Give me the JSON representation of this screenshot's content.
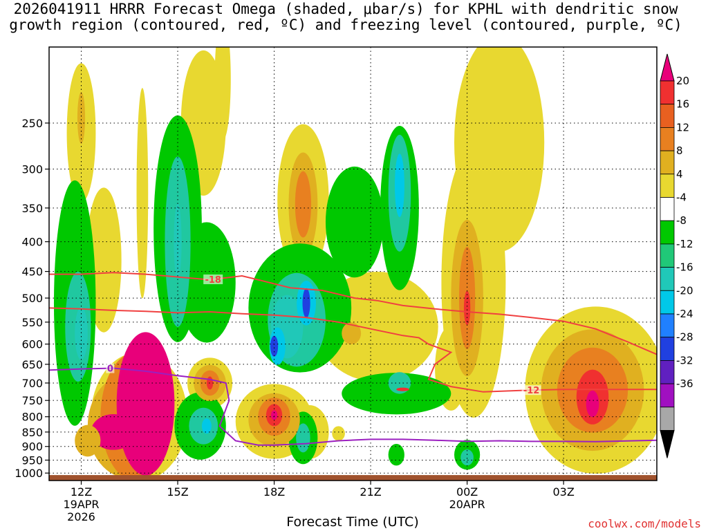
{
  "header": {
    "title_line1": "2026041911 HRRR Forecast Omega (shaded, μbar/s) for KPHL with dendritic snow",
    "title_line2": "growth region (contoured, red, ºC) and freezing level (contoured, purple, ºC)"
  },
  "footer": {
    "credit": "coolwx.com/models"
  },
  "colors": {
    "strong_rise": "#00c800",
    "rise": "#20c8a0",
    "cyan": "#00c8e8",
    "blue": "#2080ff",
    "darkblue": "#2040e0",
    "yellow": "#e8d830",
    "gold": "#e0b020",
    "orange": "#e88020",
    "red": "#f03030",
    "magenta": "#e8007a",
    "ground": "#a0522d",
    "dgz": "#f04040",
    "freezing": "#9b20c0"
  },
  "chart_data": {
    "type": "heatmap",
    "title": "2026041911 HRRR Forecast Omega (shaded, μbar/s) for KPHL with dendritic snow growth region (contoured, red, ºC) and freezing level (contoured, purple, ºC)",
    "xlabel": "Forecast Time (UTC)",
    "ylabel": "",
    "x_ticks": [
      {
        "hour": 12,
        "label": "12Z",
        "date": "19APR",
        "year": "2026"
      },
      {
        "hour": 15,
        "label": "15Z"
      },
      {
        "hour": 18,
        "label": "18Z"
      },
      {
        "hour": 21,
        "label": "21Z"
      },
      {
        "hour": 24,
        "label": "00Z",
        "date": "20APR"
      },
      {
        "hour": 27,
        "label": "03Z"
      }
    ],
    "xlim_hours": [
      11,
      29.9
    ],
    "y_ticks": [
      250,
      300,
      350,
      400,
      450,
      500,
      550,
      600,
      650,
      700,
      750,
      800,
      850,
      900,
      950,
      1000
    ],
    "ylim_hpa": [
      1030,
      185
    ],
    "grid": true,
    "colorbar": {
      "labels": [
        20,
        16,
        12,
        8,
        4,
        -4,
        -8,
        -12,
        -16,
        -20,
        -24,
        -28,
        -32,
        -36
      ],
      "colors": [
        "#e8007a",
        "#f03030",
        "#e86020",
        "#e88020",
        "#e0b020",
        "#e8d830",
        "#ffffff",
        "#00c800",
        "#20c878",
        "#20c8b8",
        "#00c8e8",
        "#2080ff",
        "#2040e0",
        "#6020c0",
        "#a010c0",
        "#a8a8a8",
        "#000000"
      ]
    },
    "omega_regions": [
      {
        "level": 4,
        "x": 12.0,
        "p": 260,
        "rx": 0.45,
        "rp": 70
      },
      {
        "level": 8,
        "x": 12.0,
        "p": 245,
        "rx": 0.12,
        "rp": 25
      },
      {
        "level": 4,
        "x": 12.7,
        "p": 430,
        "rx": 0.55,
        "rp": 120
      },
      {
        "level": 4,
        "x": 13.9,
        "p": 330,
        "rx": 0.18,
        "rp": 130
      },
      {
        "level": 4,
        "x": 15.8,
        "p": 250,
        "rx": 0.7,
        "rp": 70
      },
      {
        "level": 4,
        "x": 16.4,
        "p": 210,
        "rx": 0.25,
        "rp": 50
      },
      {
        "level": 4,
        "x": 18.9,
        "p": 340,
        "rx": 0.8,
        "rp": 100
      },
      {
        "level": 8,
        "x": 18.9,
        "p": 345,
        "rx": 0.45,
        "rp": 70
      },
      {
        "level": 12,
        "x": 18.9,
        "p": 345,
        "rx": 0.25,
        "rp": 45
      },
      {
        "level": 4,
        "x": 25.0,
        "p": 270,
        "rx": 1.4,
        "rp": 110
      },
      {
        "level": 4,
        "x": 21.2,
        "p": 560,
        "rx": 1.9,
        "rp": 120
      },
      {
        "level": 4,
        "x": 24.2,
        "p": 470,
        "rx": 1.0,
        "rp": 230
      },
      {
        "level": 4,
        "x": 28.0,
        "p": 720,
        "rx": 2.2,
        "rp": 230
      },
      {
        "level": 4,
        "x": 13.8,
        "p": 800,
        "rx": 1.5,
        "rp": 200
      },
      {
        "level": 4,
        "x": 16.0,
        "p": 700,
        "rx": 0.7,
        "rp": 70
      },
      {
        "level": 4,
        "x": 18.0,
        "p": 815,
        "rx": 1.2,
        "rp": 120
      },
      {
        "level": 4,
        "x": 19.1,
        "p": 850,
        "rx": 0.6,
        "rp": 90
      },
      {
        "level": 4,
        "x": 20.0,
        "p": 855,
        "rx": 0.2,
        "rp": 25
      },
      {
        "level": 4,
        "x": 23.5,
        "p": 660,
        "rx": 0.5,
        "rp": 110
      },
      {
        "level": -4,
        "x": 11.8,
        "p": 510,
        "rx": 0.65,
        "rp": 230
      },
      {
        "level": -8,
        "x": 11.9,
        "p": 560,
        "rx": 0.4,
        "rp": 120
      },
      {
        "level": -12,
        "x": 12.0,
        "p": 575,
        "rx": 0.2,
        "rp": 60
      },
      {
        "level": -4,
        "x": 15.0,
        "p": 380,
        "rx": 0.75,
        "rp": 160
      },
      {
        "level": -4,
        "x": 15.9,
        "p": 470,
        "rx": 0.9,
        "rp": 110
      },
      {
        "level": -8,
        "x": 15.0,
        "p": 400,
        "rx": 0.4,
        "rp": 130
      },
      {
        "level": -12,
        "x": 15.0,
        "p": 400,
        "rx": 0.12,
        "rp": 60
      },
      {
        "level": -4,
        "x": 18.8,
        "p": 520,
        "rx": 1.6,
        "rp": 130
      },
      {
        "level": -4,
        "x": 20.5,
        "p": 370,
        "rx": 0.9,
        "rp": 80
      },
      {
        "level": -8,
        "x": 18.7,
        "p": 545,
        "rx": 0.9,
        "rp": 100
      },
      {
        "level": -12,
        "x": 18.4,
        "p": 560,
        "rx": 0.5,
        "rp": 70
      },
      {
        "level": -16,
        "x": 18.1,
        "p": 605,
        "rx": 0.25,
        "rp": 45
      },
      {
        "level": -20,
        "x": 18.0,
        "p": 605,
        "rx": 0.12,
        "rp": 25
      },
      {
        "level": -16,
        "x": 19.0,
        "p": 510,
        "rx": 0.3,
        "rp": 45
      },
      {
        "level": -20,
        "x": 19.0,
        "p": 510,
        "rx": 0.12,
        "rp": 30
      },
      {
        "level": -4,
        "x": 21.9,
        "p": 350,
        "rx": 0.6,
        "rp": 110
      },
      {
        "level": -8,
        "x": 21.9,
        "p": 330,
        "rx": 0.35,
        "rp": 75
      },
      {
        "level": -16,
        "x": 21.9,
        "p": 320,
        "rx": 0.15,
        "rp": 40
      },
      {
        "level": -4,
        "x": 21.8,
        "p": 730,
        "rx": 1.7,
        "rp": 60
      },
      {
        "level": -8,
        "x": 21.9,
        "p": 700,
        "rx": 0.35,
        "rp": 30
      },
      {
        "level": -4,
        "x": 15.7,
        "p": 830,
        "rx": 0.8,
        "rp": 110
      },
      {
        "level": -8,
        "x": 15.8,
        "p": 830,
        "rx": 0.45,
        "rp": 60
      },
      {
        "level": -16,
        "x": 15.9,
        "p": 830,
        "rx": 0.15,
        "rp": 25
      },
      {
        "level": -4,
        "x": 18.9,
        "p": 870,
        "rx": 0.45,
        "rp": 90
      },
      {
        "level": -8,
        "x": 18.9,
        "p": 870,
        "rx": 0.22,
        "rp": 50
      },
      {
        "level": -4,
        "x": 12.9,
        "p": 945,
        "rx": 0.3,
        "rp": 40
      },
      {
        "level": -8,
        "x": 12.9,
        "p": 945,
        "rx": 0.15,
        "rp": 22
      },
      {
        "level": -4,
        "x": 24.0,
        "p": 930,
        "rx": 0.4,
        "rp": 55
      },
      {
        "level": -8,
        "x": 24.0,
        "p": 940,
        "rx": 0.2,
        "rp": 30
      },
      {
        "level": -4,
        "x": 21.8,
        "p": 930,
        "rx": 0.25,
        "rp": 40
      },
      {
        "level": 8,
        "x": 13.5,
        "p": 830,
        "rx": 1.3,
        "rp": 170
      },
      {
        "level": 12,
        "x": 13.7,
        "p": 800,
        "rx": 1.1,
        "rp": 200
      },
      {
        "level": 20,
        "x": 14.0,
        "p": 760,
        "rx": 0.9,
        "rp": 210
      },
      {
        "level": 20,
        "x": 13.0,
        "p": 850,
        "rx": 0.7,
        "rp": 60
      },
      {
        "level": 8,
        "x": 12.2,
        "p": 880,
        "rx": 0.4,
        "rp": 55
      },
      {
        "level": 8,
        "x": 16.0,
        "p": 700,
        "rx": 0.5,
        "rp": 50
      },
      {
        "level": 12,
        "x": 16.0,
        "p": 700,
        "rx": 0.3,
        "rp": 35
      },
      {
        "level": 16,
        "x": 16.0,
        "p": 700,
        "rx": 0.1,
        "rp": 18
      },
      {
        "level": 8,
        "x": 18.0,
        "p": 810,
        "rx": 0.8,
        "rp": 85
      },
      {
        "level": 12,
        "x": 18.0,
        "p": 800,
        "rx": 0.5,
        "rp": 60
      },
      {
        "level": 16,
        "x": 18.0,
        "p": 795,
        "rx": 0.25,
        "rp": 35
      },
      {
        "level": 20,
        "x": 18.0,
        "p": 795,
        "rx": 0.1,
        "rp": 15
      },
      {
        "level": 8,
        "x": 24.0,
        "p": 500,
        "rx": 0.5,
        "rp": 150
      },
      {
        "level": 12,
        "x": 24.0,
        "p": 500,
        "rx": 0.25,
        "rp": 100
      },
      {
        "level": 16,
        "x": 24.0,
        "p": 520,
        "rx": 0.1,
        "rp": 35
      },
      {
        "level": 8,
        "x": 27.9,
        "p": 720,
        "rx": 1.6,
        "rp": 170
      },
      {
        "level": 12,
        "x": 27.9,
        "p": 720,
        "rx": 1.1,
        "rp": 120
      },
      {
        "level": 16,
        "x": 27.9,
        "p": 740,
        "rx": 0.5,
        "rp": 80
      },
      {
        "level": 20,
        "x": 27.9,
        "p": 760,
        "rx": 0.2,
        "rp": 40
      },
      {
        "level": 8,
        "x": 20.4,
        "p": 575,
        "rx": 0.3,
        "rp": 25
      },
      {
        "level": 16,
        "x": 22.0,
        "p": 718,
        "rx": 0.2,
        "rp": 5
      }
    ],
    "dgz_contours": [
      {
        "label": "-18",
        "label_at": 16.1,
        "points": [
          [
            11,
            455
          ],
          [
            12,
            455
          ],
          [
            13,
            452
          ],
          [
            14,
            455
          ],
          [
            15,
            460
          ],
          [
            16,
            465
          ],
          [
            17,
            458
          ],
          [
            17.5,
            465
          ],
          [
            18.5,
            480
          ],
          [
            19.5,
            485
          ],
          [
            20.5,
            500
          ],
          [
            21.2,
            505
          ],
          [
            22,
            515
          ],
          [
            23,
            522
          ],
          [
            24,
            528
          ],
          [
            25,
            533
          ],
          [
            26,
            540
          ],
          [
            27,
            548
          ],
          [
            28,
            565
          ],
          [
            29,
            595
          ],
          [
            29.9,
            625
          ]
        ]
      },
      {
        "label": "-12",
        "label_at": 26.0,
        "points": [
          [
            11,
            520
          ],
          [
            12,
            522
          ],
          [
            13,
            525
          ],
          [
            14,
            527
          ],
          [
            15,
            530
          ],
          [
            16,
            528
          ],
          [
            17,
            532
          ],
          [
            18,
            535
          ],
          [
            19,
            540
          ],
          [
            20,
            550
          ],
          [
            21,
            565
          ],
          [
            22,
            580
          ],
          [
            22.5,
            585
          ],
          [
            22.8,
            600
          ],
          [
            23.5,
            620
          ],
          [
            23.0,
            650
          ],
          [
            22.8,
            690
          ],
          [
            23.5,
            710
          ],
          [
            24.5,
            725
          ],
          [
            26,
            720
          ],
          [
            27,
            718
          ],
          [
            28,
            718
          ],
          [
            29.9,
            718
          ]
        ]
      }
    ],
    "freezing_contours": [
      {
        "label": "0",
        "label_at": 12.9,
        "points": [
          [
            11,
            665
          ],
          [
            12,
            662
          ],
          [
            13,
            660
          ],
          [
            14,
            668
          ],
          [
            15,
            680
          ],
          [
            16,
            690
          ],
          [
            16.5,
            700
          ],
          [
            16.6,
            750
          ],
          [
            16.3,
            830
          ],
          [
            16.8,
            880
          ],
          [
            17.5,
            895
          ],
          [
            18,
            895
          ],
          [
            19,
            890
          ],
          [
            20,
            880
          ],
          [
            21,
            875
          ],
          [
            22,
            875
          ],
          [
            23,
            878
          ],
          [
            24,
            882
          ],
          [
            25,
            880
          ],
          [
            26,
            882
          ],
          [
            27,
            882
          ],
          [
            28,
            883
          ],
          [
            29.9,
            878
          ]
        ]
      }
    ]
  }
}
